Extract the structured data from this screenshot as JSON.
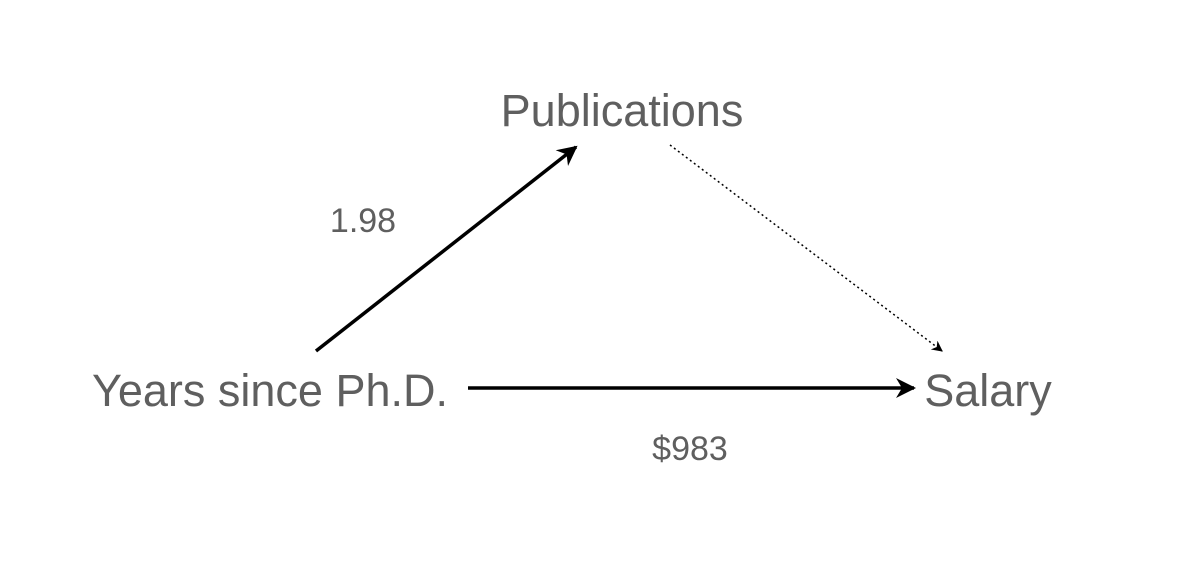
{
  "nodes": {
    "publications": "Publications",
    "years": "Years since Ph.D.",
    "salary": "Salary"
  },
  "edges": {
    "years_to_publications": "1.98",
    "years_to_salary": "$983"
  }
}
